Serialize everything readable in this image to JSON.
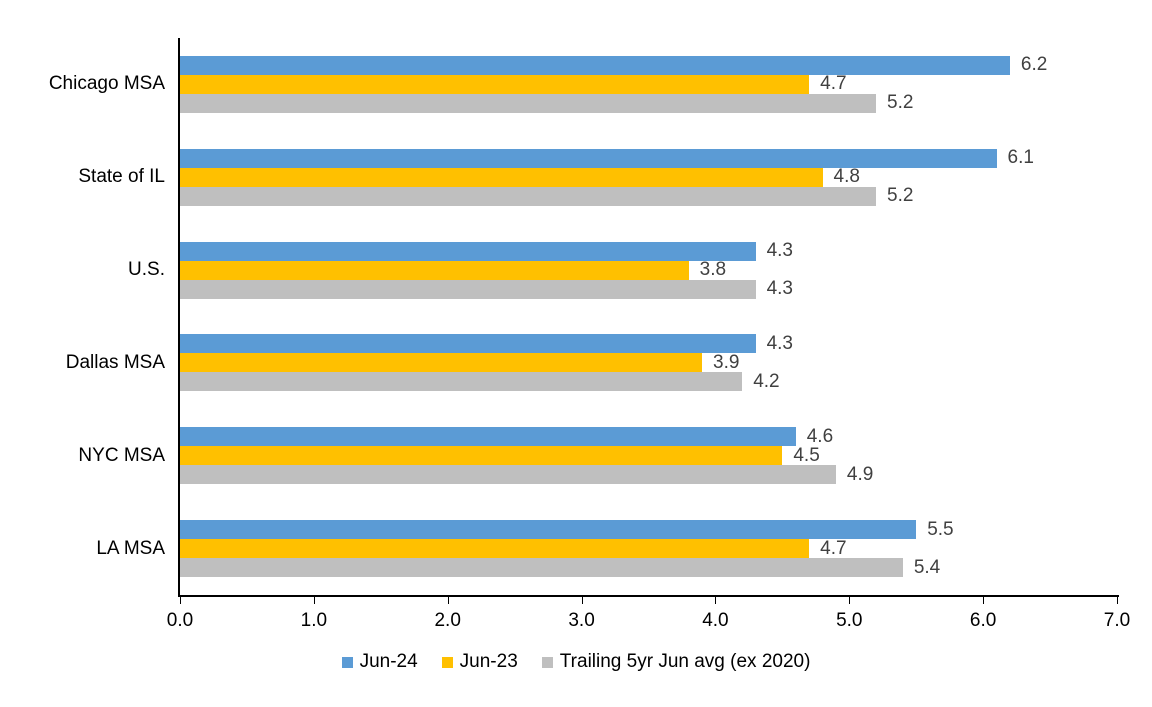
{
  "chart_data": {
    "type": "bar",
    "orientation": "horizontal",
    "title": "",
    "xlabel": "",
    "ylabel": "",
    "categories": [
      "Chicago MSA",
      "State of IL",
      "U.S.",
      "Dallas MSA",
      "NYC MSA",
      "LA MSA"
    ],
    "series": [
      {
        "name": "Jun-24",
        "color": "#5B9BD5",
        "values": [
          6.2,
          6.1,
          4.3,
          4.3,
          4.6,
          5.5
        ]
      },
      {
        "name": "Jun-23",
        "color": "#FFC000",
        "values": [
          4.7,
          4.8,
          3.8,
          3.9,
          4.5,
          4.7
        ]
      },
      {
        "name": "Trailing 5yr Jun avg (ex 2020)",
        "color": "#BFBFBF",
        "values": [
          5.2,
          5.2,
          4.3,
          4.2,
          4.9,
          5.4
        ]
      }
    ],
    "xlim": [
      0.0,
      7.0
    ],
    "x_ticks": [
      "0.0",
      "1.0",
      "2.0",
      "3.0",
      "4.0",
      "5.0",
      "6.0",
      "7.0"
    ],
    "grid": false,
    "data_labels": true,
    "data_label_color": "#404040",
    "axis_color": "#000000",
    "legend_position": "bottom"
  }
}
